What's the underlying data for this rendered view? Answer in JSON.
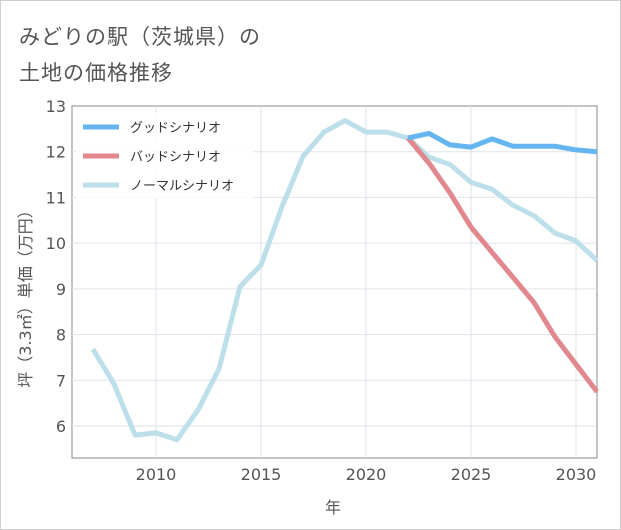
{
  "title_line1": "みどりの駅（茨城県）の",
  "title_line2": "土地の価格推移",
  "chart_data": {
    "type": "line",
    "xlabel": "年",
    "ylabel": "坪（3.3㎡）単価（万円）",
    "xlim": [
      2006,
      2031
    ],
    "ylim": [
      5.3,
      13
    ],
    "xticks": [
      2010,
      2015,
      2020,
      2025,
      2030
    ],
    "yticks": [
      6,
      7,
      8,
      9,
      10,
      11,
      12,
      13
    ],
    "grid": true,
    "legend_position": "top-left",
    "series": [
      {
        "name": "グッドシナリオ",
        "color": "#64b5f0",
        "x": [
          2022,
          2023,
          2024,
          2025,
          2026,
          2027,
          2028,
          2029,
          2030,
          2031
        ],
        "values": [
          12.3,
          12.4,
          12.15,
          12.1,
          12.28,
          12.12,
          12.12,
          12.12,
          12.04,
          12.0
        ]
      },
      {
        "name": "バッドシナリオ",
        "color": "#e0888e",
        "x": [
          2022,
          2023,
          2024,
          2025,
          2026,
          2027,
          2028,
          2029,
          2030,
          2031
        ],
        "values": [
          12.3,
          11.75,
          11.1,
          10.35,
          9.8,
          9.25,
          8.7,
          7.95,
          7.35,
          6.75
        ]
      },
      {
        "name": "ノーマルシナリオ",
        "color": "#bcdfea",
        "x": [
          2007,
          2008,
          2009,
          2010,
          2011,
          2012,
          2013,
          2014,
          2015,
          2016,
          2017,
          2018,
          2019,
          2020,
          2021,
          2022,
          2023,
          2024,
          2025,
          2026,
          2027,
          2028,
          2029,
          2030,
          2031
        ],
        "values": [
          7.68,
          6.92,
          5.8,
          5.85,
          5.7,
          6.35,
          7.25,
          9.05,
          9.52,
          10.8,
          11.9,
          12.43,
          12.68,
          12.43,
          12.43,
          12.3,
          11.88,
          11.72,
          11.33,
          11.18,
          10.83,
          10.6,
          10.22,
          10.05,
          9.62
        ]
      }
    ]
  }
}
